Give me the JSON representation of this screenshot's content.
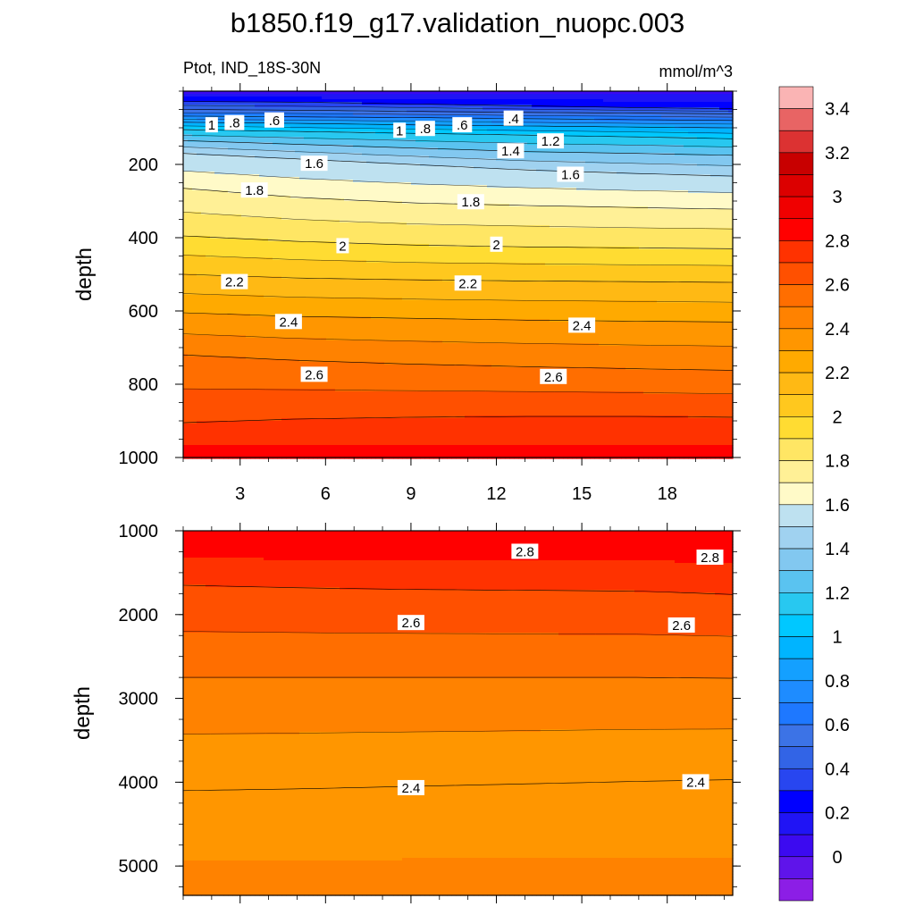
{
  "title": "b1850.f19_g17.validation_nuopc.003",
  "subtitle_left": "Ptot, IND_18S-30N",
  "subtitle_right": "mmol/m^3",
  "chart_data": [
    {
      "type": "heatmap",
      "variable": "Ptot",
      "region": "IND_18S-30N",
      "units": "mmol/m^3",
      "xlabel": "",
      "ylabel": "depth",
      "xlim": [
        1,
        20.3
      ],
      "ylim": [
        1000,
        0
      ],
      "xticks": [
        "3",
        "6",
        "9",
        "12",
        "15",
        "18"
      ],
      "xtick_values": [
        3,
        6,
        9,
        12,
        15,
        18
      ],
      "yticks": [
        "200",
        "400",
        "600",
        "800",
        "1000"
      ],
      "ytick_values": [
        200,
        400,
        600,
        800,
        1000
      ],
      "contours": [
        {
          "level": 0.4,
          "depth": [
            28,
            30,
            35,
            40,
            45,
            48
          ]
        },
        {
          "level": 0.6,
          "depth": [
            50,
            52,
            55,
            58,
            60,
            62
          ]
        },
        {
          "level": 0.8,
          "depth": [
            68,
            70,
            72,
            75,
            78,
            80
          ]
        },
        {
          "level": 1,
          "depth": [
            85,
            88,
            92,
            95,
            98,
            100
          ]
        },
        {
          "level": 1.2,
          "depth": [
            105,
            110,
            115,
            120,
            125,
            130
          ]
        },
        {
          "level": 1.4,
          "depth": [
            135,
            145,
            155,
            165,
            170,
            175
          ]
        },
        {
          "level": 1.6,
          "depth": [
            170,
            185,
            200,
            215,
            225,
            232
          ]
        },
        {
          "level": 1.8,
          "depth": [
            265,
            290,
            305,
            312,
            318,
            322
          ]
        },
        {
          "level": 2,
          "depth": [
            395,
            410,
            420,
            425,
            428,
            430
          ]
        },
        {
          "level": 2.2,
          "depth": [
            500,
            510,
            515,
            518,
            520,
            522
          ]
        },
        {
          "level": 2.4,
          "depth": [
            605,
            615,
            620,
            625,
            628,
            630
          ]
        },
        {
          "level": 2.6,
          "depth": [
            720,
            735,
            745,
            752,
            758,
            762
          ]
        },
        {
          "level": 2.8,
          "depth": [
            905,
            895,
            890,
            888,
            888,
            890
          ]
        }
      ],
      "contour_x": [
        1,
        5,
        9,
        13,
        17,
        20.3
      ],
      "contour_labels": [
        {
          "text": "1",
          "x": 2.0,
          "y": 93
        },
        {
          "text": ".8",
          "x": 2.8,
          "y": 87
        },
        {
          "text": ".6",
          "x": 4.2,
          "y": 80
        },
        {
          "text": "1",
          "x": 8.6,
          "y": 108
        },
        {
          "text": ".8",
          "x": 9.5,
          "y": 103
        },
        {
          "text": ".6",
          "x": 10.8,
          "y": 93
        },
        {
          "text": ".4",
          "x": 12.6,
          "y": 75
        },
        {
          "text": "1.2",
          "x": 13.9,
          "y": 137
        },
        {
          "text": "1.4",
          "x": 12.5,
          "y": 164
        },
        {
          "text": "1.6",
          "x": 5.6,
          "y": 198
        },
        {
          "text": "1.6",
          "x": 14.6,
          "y": 228
        },
        {
          "text": "1.8",
          "x": 3.5,
          "y": 271
        },
        {
          "text": "1.8",
          "x": 11.1,
          "y": 303
        },
        {
          "text": "2",
          "x": 6.6,
          "y": 423
        },
        {
          "text": "2",
          "x": 12.0,
          "y": 419
        },
        {
          "text": "2.2",
          "x": 2.8,
          "y": 521
        },
        {
          "text": "2.2",
          "x": 11.0,
          "y": 525
        },
        {
          "text": "2.4",
          "x": 4.7,
          "y": 630
        },
        {
          "text": "2.4",
          "x": 15.0,
          "y": 640
        },
        {
          "text": "2.6",
          "x": 5.6,
          "y": 774
        },
        {
          "text": "2.6",
          "x": 14.0,
          "y": 780
        }
      ]
    },
    {
      "type": "heatmap",
      "variable": "Ptot",
      "region": "IND_18S-30N",
      "units": "mmol/m^3",
      "xlabel": "",
      "ylabel": "depth",
      "xlim": [
        1,
        20.3
      ],
      "ylim": [
        5350,
        1000
      ],
      "xticks": [],
      "xtick_values": [
        3,
        6,
        9,
        12,
        15,
        18
      ],
      "yticks": [
        "1000",
        "2000",
        "3000",
        "4000",
        "5000"
      ],
      "ytick_values": [
        1000,
        2000,
        3000,
        4000,
        5000
      ],
      "contours": [
        {
          "level": 2.8,
          "depth": [
            1650,
            1680,
            1700,
            1710,
            1720,
            1760
          ]
        },
        {
          "level": 2.6,
          "depth": [
            2750,
            2750,
            2750,
            2750,
            2750,
            2760
          ]
        },
        {
          "level": 2.4,
          "depth": [
            4100,
            4080,
            4050,
            4020,
            3990,
            3970
          ]
        },
        {
          "level": 3.0,
          "depth": [
            1000,
            1000,
            1000,
            1000,
            1000,
            1000
          ]
        }
      ],
      "contour_x": [
        1,
        5,
        9,
        13,
        17,
        20.3
      ],
      "contour_labels": [
        {
          "text": "2.8",
          "x": 13.0,
          "y": 1250
        },
        {
          "text": "2.8",
          "x": 19.5,
          "y": 1320
        },
        {
          "text": "2.6",
          "x": 9.0,
          "y": 2100
        },
        {
          "text": "2.6",
          "x": 18.5,
          "y": 2130
        },
        {
          "text": "2.4",
          "x": 9.0,
          "y": 4070
        },
        {
          "text": "2.4",
          "x": 19.0,
          "y": 4000
        }
      ]
    }
  ],
  "colorbar": {
    "labels": [
      "3.4",
      "3.2",
      "3",
      "2.8",
      "2.6",
      "2.4",
      "2.2",
      "2",
      "1.8",
      "1.6",
      "1.4",
      "1.2",
      "1",
      "0.8",
      "0.6",
      "0.4",
      "0.2",
      "0"
    ],
    "label_values": [
      3.4,
      3.2,
      3.0,
      2.8,
      2.6,
      2.4,
      2.2,
      2.0,
      1.8,
      1.6,
      1.4,
      1.2,
      1.0,
      0.8,
      0.6,
      0.4,
      0.2,
      0.0
    ],
    "bins": [
      {
        "min": -0.1,
        "color": "#8c1ee6"
      },
      {
        "min": 0.0,
        "color": "#5f14ea"
      },
      {
        "min": 0.1,
        "color": "#3c0af0"
      },
      {
        "min": 0.2,
        "color": "#2014f5"
      },
      {
        "min": 0.3,
        "color": "#0000ff"
      },
      {
        "min": 0.4,
        "color": "#2846f0"
      },
      {
        "min": 0.5,
        "color": "#3264e6"
      },
      {
        "min": 0.6,
        "color": "#3c73e6"
      },
      {
        "min": 0.7,
        "color": "#1e78ff"
      },
      {
        "min": 0.8,
        "color": "#1e8cff"
      },
      {
        "min": 0.9,
        "color": "#14a0ff"
      },
      {
        "min": 1.0,
        "color": "#00b4ff"
      },
      {
        "min": 1.1,
        "color": "#00c8ff"
      },
      {
        "min": 1.2,
        "color": "#28c8f0"
      },
      {
        "min": 1.3,
        "color": "#5ac3f0"
      },
      {
        "min": 1.4,
        "color": "#82c8f0"
      },
      {
        "min": 1.5,
        "color": "#a0d2f0"
      },
      {
        "min": 1.6,
        "color": "#bee1f0"
      },
      {
        "min": 1.7,
        "color": "#fffac8"
      },
      {
        "min": 1.8,
        "color": "#fff096"
      },
      {
        "min": 1.9,
        "color": "#ffe664"
      },
      {
        "min": 2.0,
        "color": "#ffdc32"
      },
      {
        "min": 2.1,
        "color": "#ffc81e"
      },
      {
        "min": 2.2,
        "color": "#ffb914"
      },
      {
        "min": 2.3,
        "color": "#ffaa00"
      },
      {
        "min": 2.4,
        "color": "#ff9600"
      },
      {
        "min": 2.5,
        "color": "#ff8200"
      },
      {
        "min": 2.6,
        "color": "#ff6e00"
      },
      {
        "min": 2.7,
        "color": "#ff5000"
      },
      {
        "min": 2.8,
        "color": "#ff3200"
      },
      {
        "min": 2.9,
        "color": "#ff0000"
      },
      {
        "min": 3.0,
        "color": "#f00000"
      },
      {
        "min": 3.1,
        "color": "#dc0000"
      },
      {
        "min": 3.2,
        "color": "#c80000"
      },
      {
        "min": 3.3,
        "color": "#dc3232"
      },
      {
        "min": 3.4,
        "color": "#e86464"
      },
      {
        "min": 3.5,
        "color": "#fab4b4"
      }
    ]
  }
}
